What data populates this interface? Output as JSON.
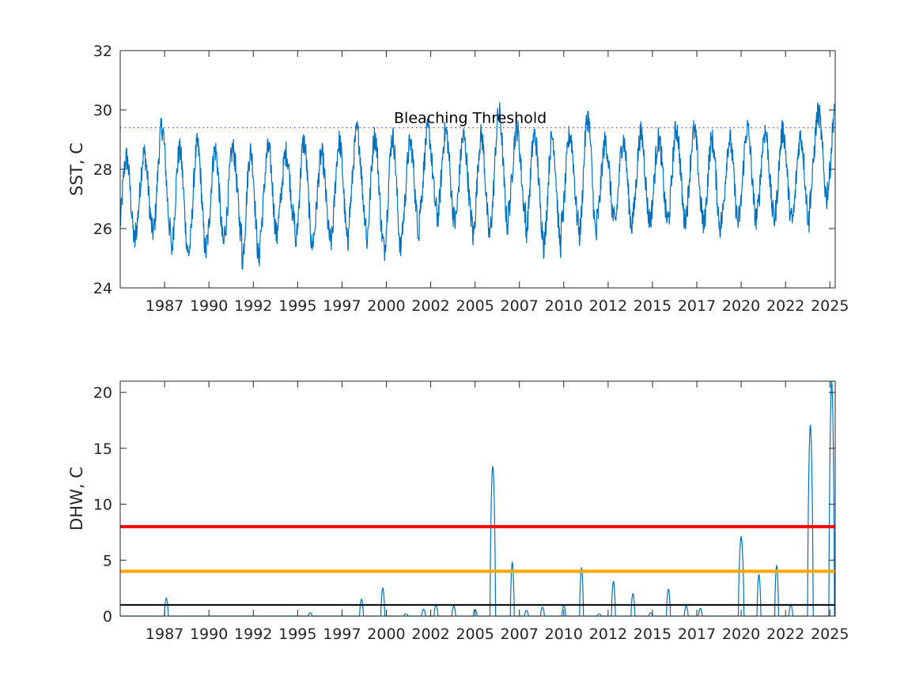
{
  "chart_data": [
    {
      "type": "line",
      "ylabel": "SST, C",
      "ylim": [
        24,
        32
      ],
      "xlim": [
        1984.8,
        2025.1
      ],
      "yticks": [
        "24",
        "26",
        "28",
        "30",
        "32"
      ],
      "xticks": [
        {
          "x": 1987.3,
          "label": "1987"
        },
        {
          "x": 1989.8,
          "label": "1990"
        },
        {
          "x": 1992.3,
          "label": "1992"
        },
        {
          "x": 1994.8,
          "label": "1995"
        },
        {
          "x": 1997.3,
          "label": "1997"
        },
        {
          "x": 1999.8,
          "label": "2000"
        },
        {
          "x": 2002.3,
          "label": "2002"
        },
        {
          "x": 2004.8,
          "label": "2005"
        },
        {
          "x": 2007.3,
          "label": "2007"
        },
        {
          "x": 2009.8,
          "label": "2010"
        },
        {
          "x": 2012.3,
          "label": "2012"
        },
        {
          "x": 2014.8,
          "label": "2015"
        },
        {
          "x": 2017.3,
          "label": "2017"
        },
        {
          "x": 2019.8,
          "label": "2020"
        },
        {
          "x": 2022.3,
          "label": "2022"
        },
        {
          "x": 2024.8,
          "label": "2025"
        }
      ],
      "threshold": {
        "value": 29.4,
        "label": "Bleaching Threshold",
        "style": "dotted",
        "color": "#4d4dff"
      },
      "series": [
        {
          "color": "#0072BD",
          "annual_max": [
            {
              "year": 1985,
              "max": 28.7
            },
            {
              "year": 1986,
              "max": 28.8
            },
            {
              "year": 1987,
              "max": 29.8
            },
            {
              "year": 1988,
              "max": 29.0
            },
            {
              "year": 1989,
              "max": 29.2
            },
            {
              "year": 1990,
              "max": 29.0
            },
            {
              "year": 1991,
              "max": 29.0
            },
            {
              "year": 1992,
              "max": 29.0
            },
            {
              "year": 1993,
              "max": 29.0
            },
            {
              "year": 1994,
              "max": 28.8
            },
            {
              "year": 1995,
              "max": 29.3
            },
            {
              "year": 1996,
              "max": 28.8
            },
            {
              "year": 1997,
              "max": 29.3
            },
            {
              "year": 1998,
              "max": 29.6
            },
            {
              "year": 1999,
              "max": 29.5
            },
            {
              "year": 2000,
              "max": 29.5
            },
            {
              "year": 2001,
              "max": 29.2
            },
            {
              "year": 2002,
              "max": 29.6
            },
            {
              "year": 2003,
              "max": 29.6
            },
            {
              "year": 2004,
              "max": 29.4
            },
            {
              "year": 2005,
              "max": 29.5
            },
            {
              "year": 2006,
              "max": 30.3
            },
            {
              "year": 2007,
              "max": 29.7
            },
            {
              "year": 2008,
              "max": 29.5
            },
            {
              "year": 2009,
              "max": 29.5
            },
            {
              "year": 2010,
              "max": 29.5
            },
            {
              "year": 2011,
              "max": 30.2
            },
            {
              "year": 2012,
              "max": 29.2
            },
            {
              "year": 2013,
              "max": 29.3
            },
            {
              "year": 2014,
              "max": 29.5
            },
            {
              "year": 2015,
              "max": 29.3
            },
            {
              "year": 2016,
              "max": 29.7
            },
            {
              "year": 2017,
              "max": 29.6
            },
            {
              "year": 2018,
              "max": 29.3
            },
            {
              "year": 2019,
              "max": 29.3
            },
            {
              "year": 2020,
              "max": 29.7
            },
            {
              "year": 2021,
              "max": 29.6
            },
            {
              "year": 2022,
              "max": 29.6
            },
            {
              "year": 2023,
              "max": 29.4
            },
            {
              "year": 2024,
              "max": 30.2
            },
            {
              "year": 2025,
              "max": 30.7
            }
          ],
          "annual_min": [
            {
              "year": 1985,
              "min": 25.2
            },
            {
              "year": 1986,
              "min": 25.6
            },
            {
              "year": 1987,
              "min": 25.5
            },
            {
              "year": 1988,
              "min": 24.8
            },
            {
              "year": 1989,
              "min": 24.8
            },
            {
              "year": 1990,
              "min": 25.1
            },
            {
              "year": 1991,
              "min": 25.5
            },
            {
              "year": 1992,
              "min": 24.5
            },
            {
              "year": 1993,
              "min": 25.4
            },
            {
              "year": 1994,
              "min": 25.9
            },
            {
              "year": 1995,
              "min": 25.0
            },
            {
              "year": 1996,
              "min": 25.3
            },
            {
              "year": 1997,
              "min": 25.1
            },
            {
              "year": 1998,
              "min": 26.0
            },
            {
              "year": 1999,
              "min": 25.1
            },
            {
              "year": 2000,
              "min": 24.8
            },
            {
              "year": 2001,
              "min": 25.6
            },
            {
              "year": 2002,
              "min": 26.3
            },
            {
              "year": 2003,
              "min": 26.0
            },
            {
              "year": 2004,
              "min": 25.9
            },
            {
              "year": 2005,
              "min": 25.3
            },
            {
              "year": 2006,
              "min": 25.7
            },
            {
              "year": 2007,
              "min": 26.2
            },
            {
              "year": 2008,
              "min": 25.5
            },
            {
              "year": 2009,
              "min": 25.0
            },
            {
              "year": 2010,
              "min": 25.8
            },
            {
              "year": 2011,
              "min": 25.3
            },
            {
              "year": 2012,
              "min": 26.0
            },
            {
              "year": 2013,
              "min": 25.8
            },
            {
              "year": 2014,
              "min": 26.0
            },
            {
              "year": 2015,
              "min": 26.0
            },
            {
              "year": 2016,
              "min": 25.9
            },
            {
              "year": 2017,
              "min": 26.1
            },
            {
              "year": 2018,
              "min": 25.7
            },
            {
              "year": 2019,
              "min": 25.9
            },
            {
              "year": 2020,
              "min": 26.0
            },
            {
              "year": 2021,
              "min": 26.1
            },
            {
              "year": 2022,
              "min": 26.0
            },
            {
              "year": 2023,
              "min": 25.9
            },
            {
              "year": 2024,
              "min": 26.7
            },
            {
              "year": 2025,
              "min": 27.0
            }
          ]
        }
      ]
    },
    {
      "type": "line",
      "ylabel": "DHW, C",
      "ylim": [
        0,
        21
      ],
      "xlim": [
        1984.8,
        2025.1
      ],
      "yticks": [
        "0",
        "5",
        "10",
        "15",
        "20"
      ],
      "xticks": [
        {
          "x": 1987.3,
          "label": "1987"
        },
        {
          "x": 1989.8,
          "label": "1990"
        },
        {
          "x": 1992.3,
          "label": "1992"
        },
        {
          "x": 1994.8,
          "label": "1995"
        },
        {
          "x": 1997.3,
          "label": "1997"
        },
        {
          "x": 1999.8,
          "label": "2000"
        },
        {
          "x": 2002.3,
          "label": "2002"
        },
        {
          "x": 2004.8,
          "label": "2005"
        },
        {
          "x": 2007.3,
          "label": "2007"
        },
        {
          "x": 2009.8,
          "label": "2010"
        },
        {
          "x": 2012.3,
          "label": "2012"
        },
        {
          "x": 2014.8,
          "label": "2015"
        },
        {
          "x": 2017.3,
          "label": "2017"
        },
        {
          "x": 2019.8,
          "label": "2020"
        },
        {
          "x": 2022.3,
          "label": "2022"
        },
        {
          "x": 2024.8,
          "label": "2025"
        }
      ],
      "reference_lines": [
        {
          "value": 8,
          "color": "#ff0000"
        },
        {
          "value": 4,
          "color": "#ffa500"
        },
        {
          "value": 1,
          "color": "#000000"
        }
      ],
      "series": [
        {
          "color": "#0072BD",
          "peaks": [
            {
              "x": 1987.4,
              "peak": 1.6
            },
            {
              "x": 1995.5,
              "peak": 0.3
            },
            {
              "x": 1998.4,
              "peak": 1.5
            },
            {
              "x": 1999.6,
              "peak": 2.5
            },
            {
              "x": 2000.9,
              "peak": 0.2
            },
            {
              "x": 2001.9,
              "peak": 0.6
            },
            {
              "x": 2002.6,
              "peak": 1.0
            },
            {
              "x": 2003.6,
              "peak": 0.9
            },
            {
              "x": 2004.8,
              "peak": 0.6
            },
            {
              "x": 2005.8,
              "peak": 13.4
            },
            {
              "x": 2006.9,
              "peak": 4.8
            },
            {
              "x": 2007.7,
              "peak": 0.5
            },
            {
              "x": 2008.6,
              "peak": 0.8
            },
            {
              "x": 2009.8,
              "peak": 0.9
            },
            {
              "x": 2010.8,
              "peak": 4.3
            },
            {
              "x": 2011.8,
              "peak": 0.2
            },
            {
              "x": 2012.6,
              "peak": 3.1
            },
            {
              "x": 2013.7,
              "peak": 2.0
            },
            {
              "x": 2014.7,
              "peak": 0.3
            },
            {
              "x": 2015.7,
              "peak": 2.4
            },
            {
              "x": 2016.7,
              "peak": 0.9
            },
            {
              "x": 2017.5,
              "peak": 0.7
            },
            {
              "x": 2019.8,
              "peak": 7.1
            },
            {
              "x": 2020.8,
              "peak": 3.7
            },
            {
              "x": 2021.8,
              "peak": 4.5
            },
            {
              "x": 2022.6,
              "peak": 1.0
            },
            {
              "x": 2023.7,
              "peak": 17.1
            },
            {
              "x": 2024.9,
              "peak": 21.0
            }
          ]
        }
      ]
    }
  ]
}
